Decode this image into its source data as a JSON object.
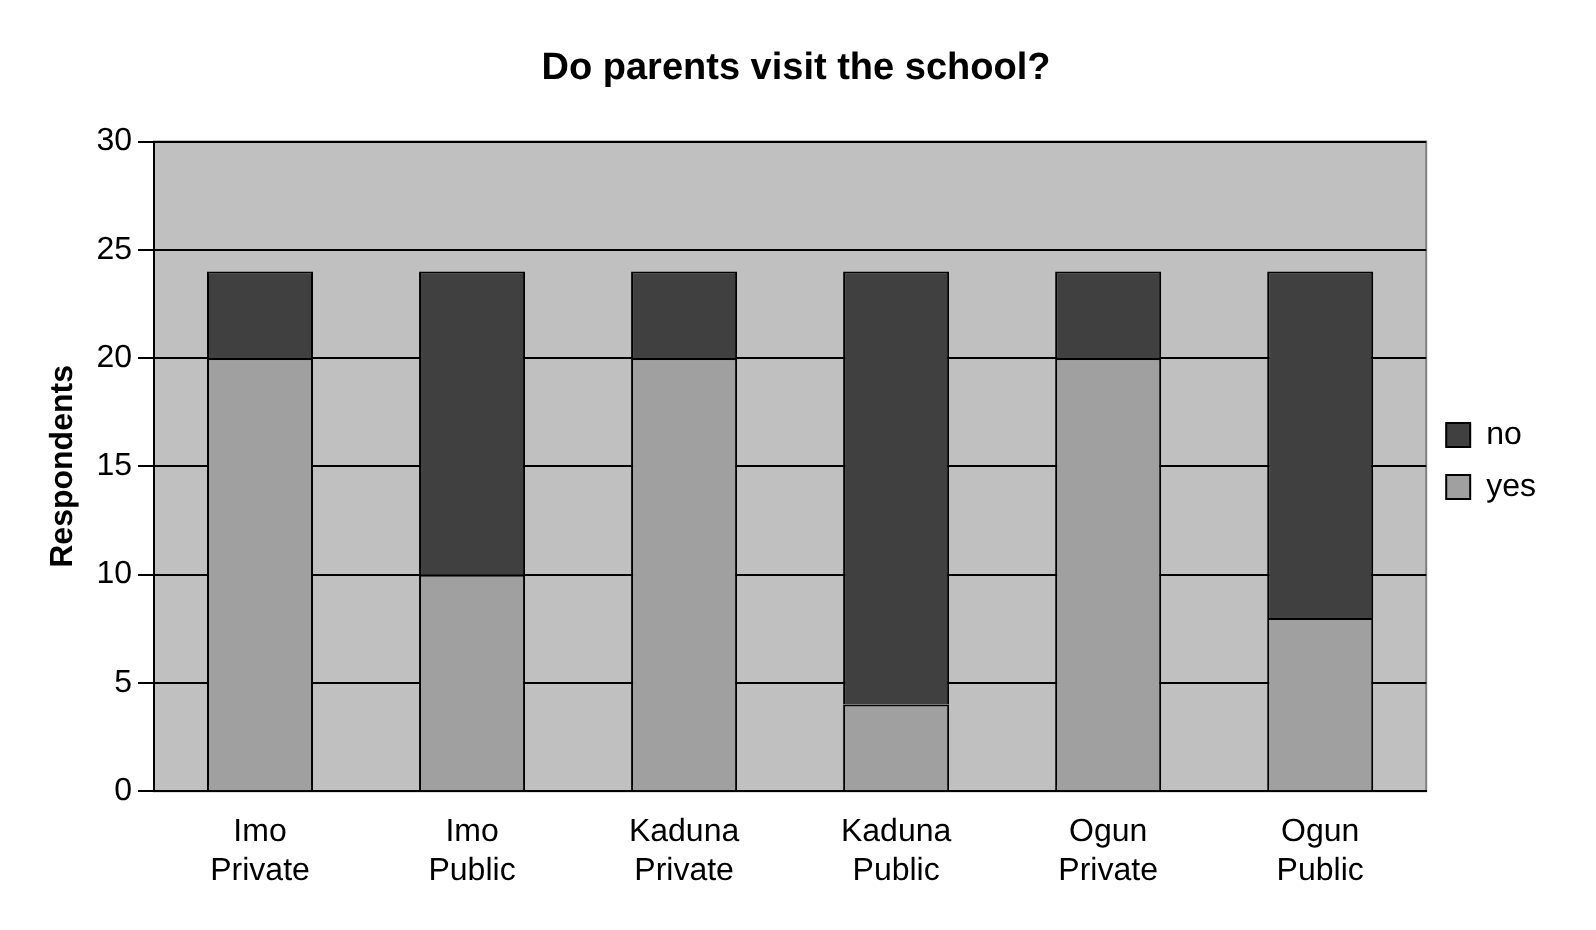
{
  "chart_data": {
    "type": "bar",
    "title": "Do parents visit the school?",
    "ylabel": "Respondents",
    "categories": [
      "Imo Private",
      "Imo Public",
      "Kaduna Private",
      "Kaduna Public",
      "Ogun Private",
      "Ogun Public"
    ],
    "stacked": true,
    "series": [
      {
        "name": "yes",
        "color": "#a0a0a0",
        "values": [
          20,
          10,
          20,
          4,
          20,
          8
        ]
      },
      {
        "name": "no",
        "color": "#404040",
        "values": [
          4,
          14,
          4,
          20,
          4,
          16
        ]
      }
    ],
    "ylim": [
      0,
      30
    ],
    "yticks": [
      0,
      5,
      10,
      15,
      20,
      25,
      30
    ],
    "grid": "y",
    "legend": "right"
  }
}
